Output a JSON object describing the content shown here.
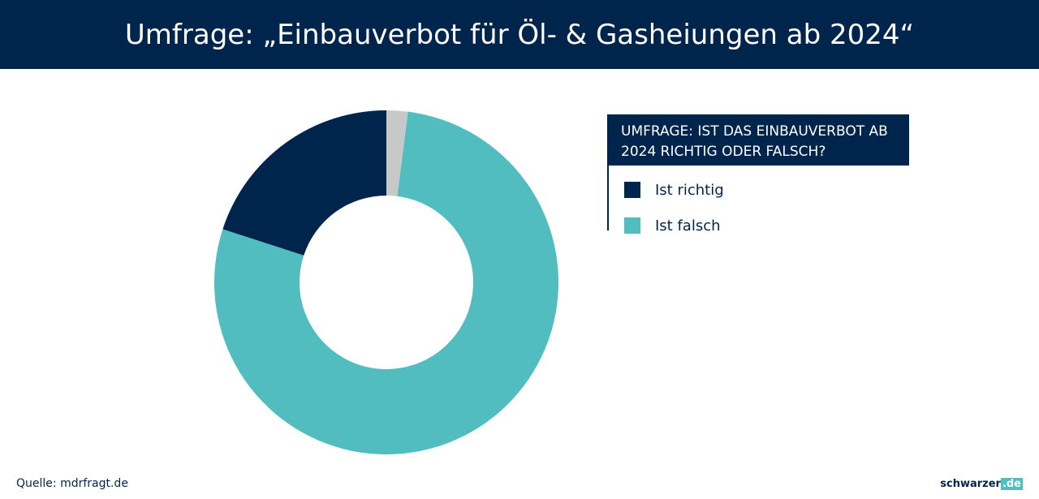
{
  "chart_data": {
    "type": "donut",
    "title": "Umfrage: „Einbauverbot für Öl- & Gasheiungen ab 2024“",
    "legend_title": "UMFRAGE: IST DAS EINBAUVERBOT AB 2024 RICHTIG ODER FALSCH?",
    "categories": [
      "Ist richtig",
      "Ist falsch",
      null
    ],
    "values": [
      20,
      78,
      2
    ],
    "colors": [
      "#00254c",
      "#52bdbf",
      "#c8c8c8"
    ]
  },
  "footer": {
    "source": "Quelle: mdrfragt.de",
    "brand": "schwarzer",
    "brand_tld": ".de"
  }
}
